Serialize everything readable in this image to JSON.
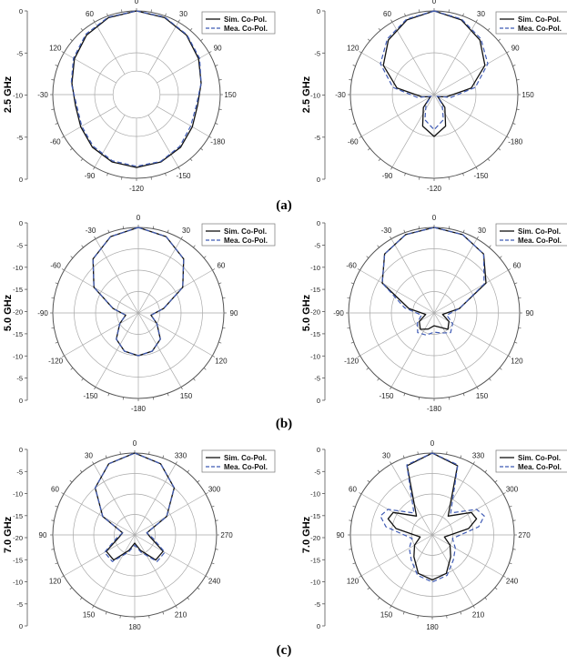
{
  "captions": [
    "(a)",
    "(b)",
    "(c)"
  ],
  "chart_data": [
    {
      "type": "polar-line",
      "row": 0,
      "col": 0,
      "ylabel": "2.5 GHz",
      "r_ticks": [
        "0",
        "-5",
        "-10",
        "-5",
        "0"
      ],
      "angle_labels": [
        "0",
        "30",
        "90",
        "150",
        "-180",
        "-150",
        "-120",
        "-90",
        "-60",
        "-30",
        "120",
        "60"
      ],
      "legend_position": "top-right",
      "inner_gap": 0.28,
      "series": [
        {
          "name": "Sim. Co-Pol.",
          "angles": [
            0,
            20,
            40,
            60,
            80,
            100,
            120,
            140,
            160,
            180,
            200,
            220,
            240,
            260,
            280,
            300,
            320,
            340
          ],
          "values": [
            0,
            -0.3,
            -1.0,
            -2.0,
            -3.0,
            -3.6,
            -3.2,
            -2.5,
            -2.0,
            -1.8,
            -2.0,
            -2.5,
            -3.2,
            -3.6,
            -3.0,
            -2.0,
            -1.0,
            -0.3
          ]
        },
        {
          "name": "Mea. Co-Pol.",
          "angles": [
            0,
            20,
            40,
            60,
            80,
            100,
            120,
            140,
            160,
            180,
            200,
            220,
            240,
            260,
            280,
            300,
            320,
            340
          ],
          "values": [
            0,
            -0.2,
            -0.9,
            -1.8,
            -3.0,
            -3.8,
            -3.5,
            -2.7,
            -2.1,
            -2.0,
            -2.2,
            -2.7,
            -3.4,
            -3.8,
            -2.9,
            -1.8,
            -0.8,
            -0.2
          ]
        }
      ]
    },
    {
      "type": "polar-line",
      "row": 0,
      "col": 1,
      "ylabel": "2.5 GHz",
      "r_ticks": [
        "0",
        "-5",
        "-10",
        "-5",
        "0"
      ],
      "angle_labels": [
        "0",
        "30",
        "90",
        "150",
        "-180",
        "-150",
        "-120",
        "-90",
        "-60",
        "-30",
        "120",
        "60"
      ],
      "legend_position": "top-right",
      "inner_gap": 0,
      "series": [
        {
          "name": "Sim. Co-Pol.",
          "angles": [
            0,
            20,
            40,
            60,
            80,
            100,
            120,
            140,
            160,
            180,
            200,
            220,
            240,
            260,
            280,
            300,
            320,
            340
          ],
          "values": [
            0,
            -0.5,
            -1.5,
            -3.0,
            -5.5,
            -8.5,
            -9.5,
            -8.0,
            -6.0,
            -5.0,
            -6.0,
            -8.0,
            -9.5,
            -8.5,
            -5.5,
            -3.0,
            -1.5,
            -0.5
          ]
        },
        {
          "name": "Mea. Co-Pol.",
          "angles": [
            0,
            20,
            40,
            60,
            80,
            100,
            120,
            140,
            160,
            180,
            200,
            220,
            240,
            260,
            280,
            300,
            320,
            340
          ],
          "values": [
            0,
            -0.4,
            -1.3,
            -2.6,
            -5.0,
            -8.0,
            -9.6,
            -8.5,
            -6.8,
            -5.8,
            -6.8,
            -8.5,
            -9.6,
            -8.0,
            -5.0,
            -2.6,
            -1.3,
            -0.4
          ]
        }
      ]
    },
    {
      "type": "polar-line",
      "row": 1,
      "col": 0,
      "ylabel": "5.0 GHz",
      "r_ticks": [
        "0",
        "-5",
        "-10",
        "-15",
        "-20",
        "-15",
        "-10",
        "-5",
        "0"
      ],
      "angle_labels": [
        "0",
        "30",
        "60",
        "90",
        "120",
        "150",
        "-180",
        "-150",
        "-120",
        "-90",
        "-60",
        "-30"
      ],
      "legend_position": "top-right",
      "inner_gap": 0,
      "series": [
        {
          "name": "Sim. Co-Pol.",
          "angles": [
            0,
            20,
            40,
            60,
            80,
            100,
            120,
            140,
            160,
            180,
            200,
            220,
            240,
            260,
            280,
            300,
            320,
            340
          ],
          "values": [
            0,
            -1.0,
            -3.5,
            -8.0,
            -14.0,
            -17.0,
            -15.0,
            -12.0,
            -10.5,
            -10.0,
            -10.5,
            -12.0,
            -15.0,
            -17.0,
            -14.0,
            -8.0,
            -3.5,
            -1.0
          ]
        },
        {
          "name": "Mea. Co-Pol.",
          "angles": [
            0,
            20,
            40,
            60,
            80,
            100,
            120,
            140,
            160,
            180,
            200,
            220,
            240,
            260,
            280,
            300,
            320,
            340
          ],
          "values": [
            0,
            -1.0,
            -3.5,
            -8.0,
            -14.0,
            -17.0,
            -15.0,
            -12.0,
            -10.5,
            -10.0,
            -10.5,
            -12.0,
            -15.0,
            -17.0,
            -14.0,
            -8.0,
            -3.5,
            -1.0
          ]
        }
      ]
    },
    {
      "type": "polar-line",
      "row": 1,
      "col": 1,
      "ylabel": "5.0 GHz",
      "r_ticks": [
        "0",
        "-5",
        "-10",
        "-15",
        "-20",
        "-15",
        "-10",
        "-5",
        "0"
      ],
      "angle_labels": [
        "0",
        "30",
        "60",
        "90",
        "120",
        "150",
        "-180",
        "-150",
        "-120",
        "-90",
        "-60",
        "-30"
      ],
      "legend_position": "top-right",
      "inner_gap": 0,
      "series": [
        {
          "name": "Sim. Co-Pol.",
          "angles": [
            0,
            20,
            40,
            60,
            80,
            100,
            120,
            140,
            160,
            180,
            200,
            220,
            240,
            260,
            280,
            300,
            320,
            340
          ],
          "values": [
            0,
            -0.5,
            -2.0,
            -6.0,
            -14.0,
            -18.0,
            -16.0,
            -15.0,
            -16.5,
            -17.0,
            -16.0,
            -15.0,
            -16.0,
            -18.0,
            -14.0,
            -6.0,
            -2.0,
            -0.5
          ]
        },
        {
          "name": "Mea. Co-Pol.",
          "angles": [
            0,
            20,
            40,
            60,
            80,
            100,
            120,
            140,
            160,
            180,
            200,
            220,
            240,
            260,
            280,
            300,
            320,
            340
          ],
          "values": [
            0,
            -0.5,
            -2.0,
            -6.5,
            -14.0,
            -17.0,
            -15.0,
            -14.0,
            -15.0,
            -15.5,
            -14.5,
            -14.0,
            -15.5,
            -17.0,
            -13.0,
            -6.0,
            -2.0,
            -0.5
          ]
        }
      ]
    },
    {
      "type": "polar-line",
      "row": 2,
      "col": 0,
      "ylabel": "7.0 GHz",
      "r_ticks": [
        "0",
        "-5",
        "-10",
        "-15",
        "-20",
        "-15",
        "-10",
        "-5",
        "0"
      ],
      "angle_labels": [
        "0",
        "330",
        "300",
        "270",
        "240",
        "210",
        "180",
        "150",
        "120",
        "90",
        "60",
        "30"
      ],
      "legend_position": "top-right",
      "inner_gap": 0,
      "series": [
        {
          "name": "Sim. Co-Pol.",
          "angles": [
            0,
            20,
            40,
            60,
            80,
            100,
            120,
            140,
            160,
            180,
            200,
            220,
            240,
            260,
            280,
            300,
            320,
            340
          ],
          "values": [
            0,
            -1.5,
            -5.0,
            -11.0,
            -17.0,
            -16.0,
            -12.0,
            -12.0,
            -16.0,
            -18.0,
            -16.0,
            -12.0,
            -12.0,
            -16.0,
            -17.0,
            -11.0,
            -5.0,
            -1.5
          ]
        },
        {
          "name": "Mea. Co-Pol.",
          "angles": [
            0,
            20,
            40,
            60,
            80,
            100,
            120,
            140,
            160,
            180,
            200,
            220,
            240,
            260,
            280,
            300,
            320,
            340
          ],
          "values": [
            0,
            -1.5,
            -5.0,
            -11.0,
            -17.0,
            -15.5,
            -11.5,
            -11.5,
            -15.5,
            -17.5,
            -15.5,
            -11.5,
            -11.5,
            -15.5,
            -17.0,
            -11.0,
            -5.0,
            -1.5
          ]
        }
      ]
    },
    {
      "type": "polar-line",
      "row": 2,
      "col": 1,
      "ylabel": "7.0 GHz",
      "r_ticks": [
        "0",
        "-5",
        "-10",
        "-15",
        "-20",
        "-15",
        "-10",
        "-5",
        "0"
      ],
      "angle_labels": [
        "0",
        "330",
        "300",
        "270",
        "240",
        "210",
        "180",
        "150",
        "120",
        "90",
        "60",
        "30"
      ],
      "legend_position": "top-right",
      "inner_gap": 0,
      "series": [
        {
          "name": "Sim. Co-Pol.",
          "angles": [
            0,
            20,
            40,
            60,
            70,
            80,
            100,
            120,
            140,
            160,
            180,
            200,
            220,
            240,
            260,
            280,
            290,
            300,
            320,
            340
          ],
          "values": [
            0,
            -2.0,
            -14.0,
            -9.0,
            -8.5,
            -11.0,
            -17.0,
            -15.0,
            -13.0,
            -10.0,
            -9.0,
            -10.0,
            -13.0,
            -15.0,
            -17.0,
            -11.0,
            -8.5,
            -9.0,
            -14.0,
            -2.0
          ]
        },
        {
          "name": "Mea. Co-Pol.",
          "angles": [
            0,
            20,
            40,
            60,
            70,
            80,
            100,
            120,
            140,
            160,
            180,
            200,
            220,
            240,
            260,
            280,
            290,
            300,
            320,
            340
          ],
          "values": [
            0,
            -1.8,
            -13.0,
            -7.5,
            -6.5,
            -8.5,
            -15.0,
            -13.5,
            -12.0,
            -9.5,
            -8.5,
            -9.5,
            -12.0,
            -13.5,
            -15.0,
            -8.5,
            -6.5,
            -7.5,
            -13.0,
            -1.8
          ]
        }
      ]
    }
  ],
  "colors": {
    "sim": "#111111",
    "mea": "#3f5bb5",
    "grid": "#a9a9a9",
    "frame": "#555555"
  }
}
